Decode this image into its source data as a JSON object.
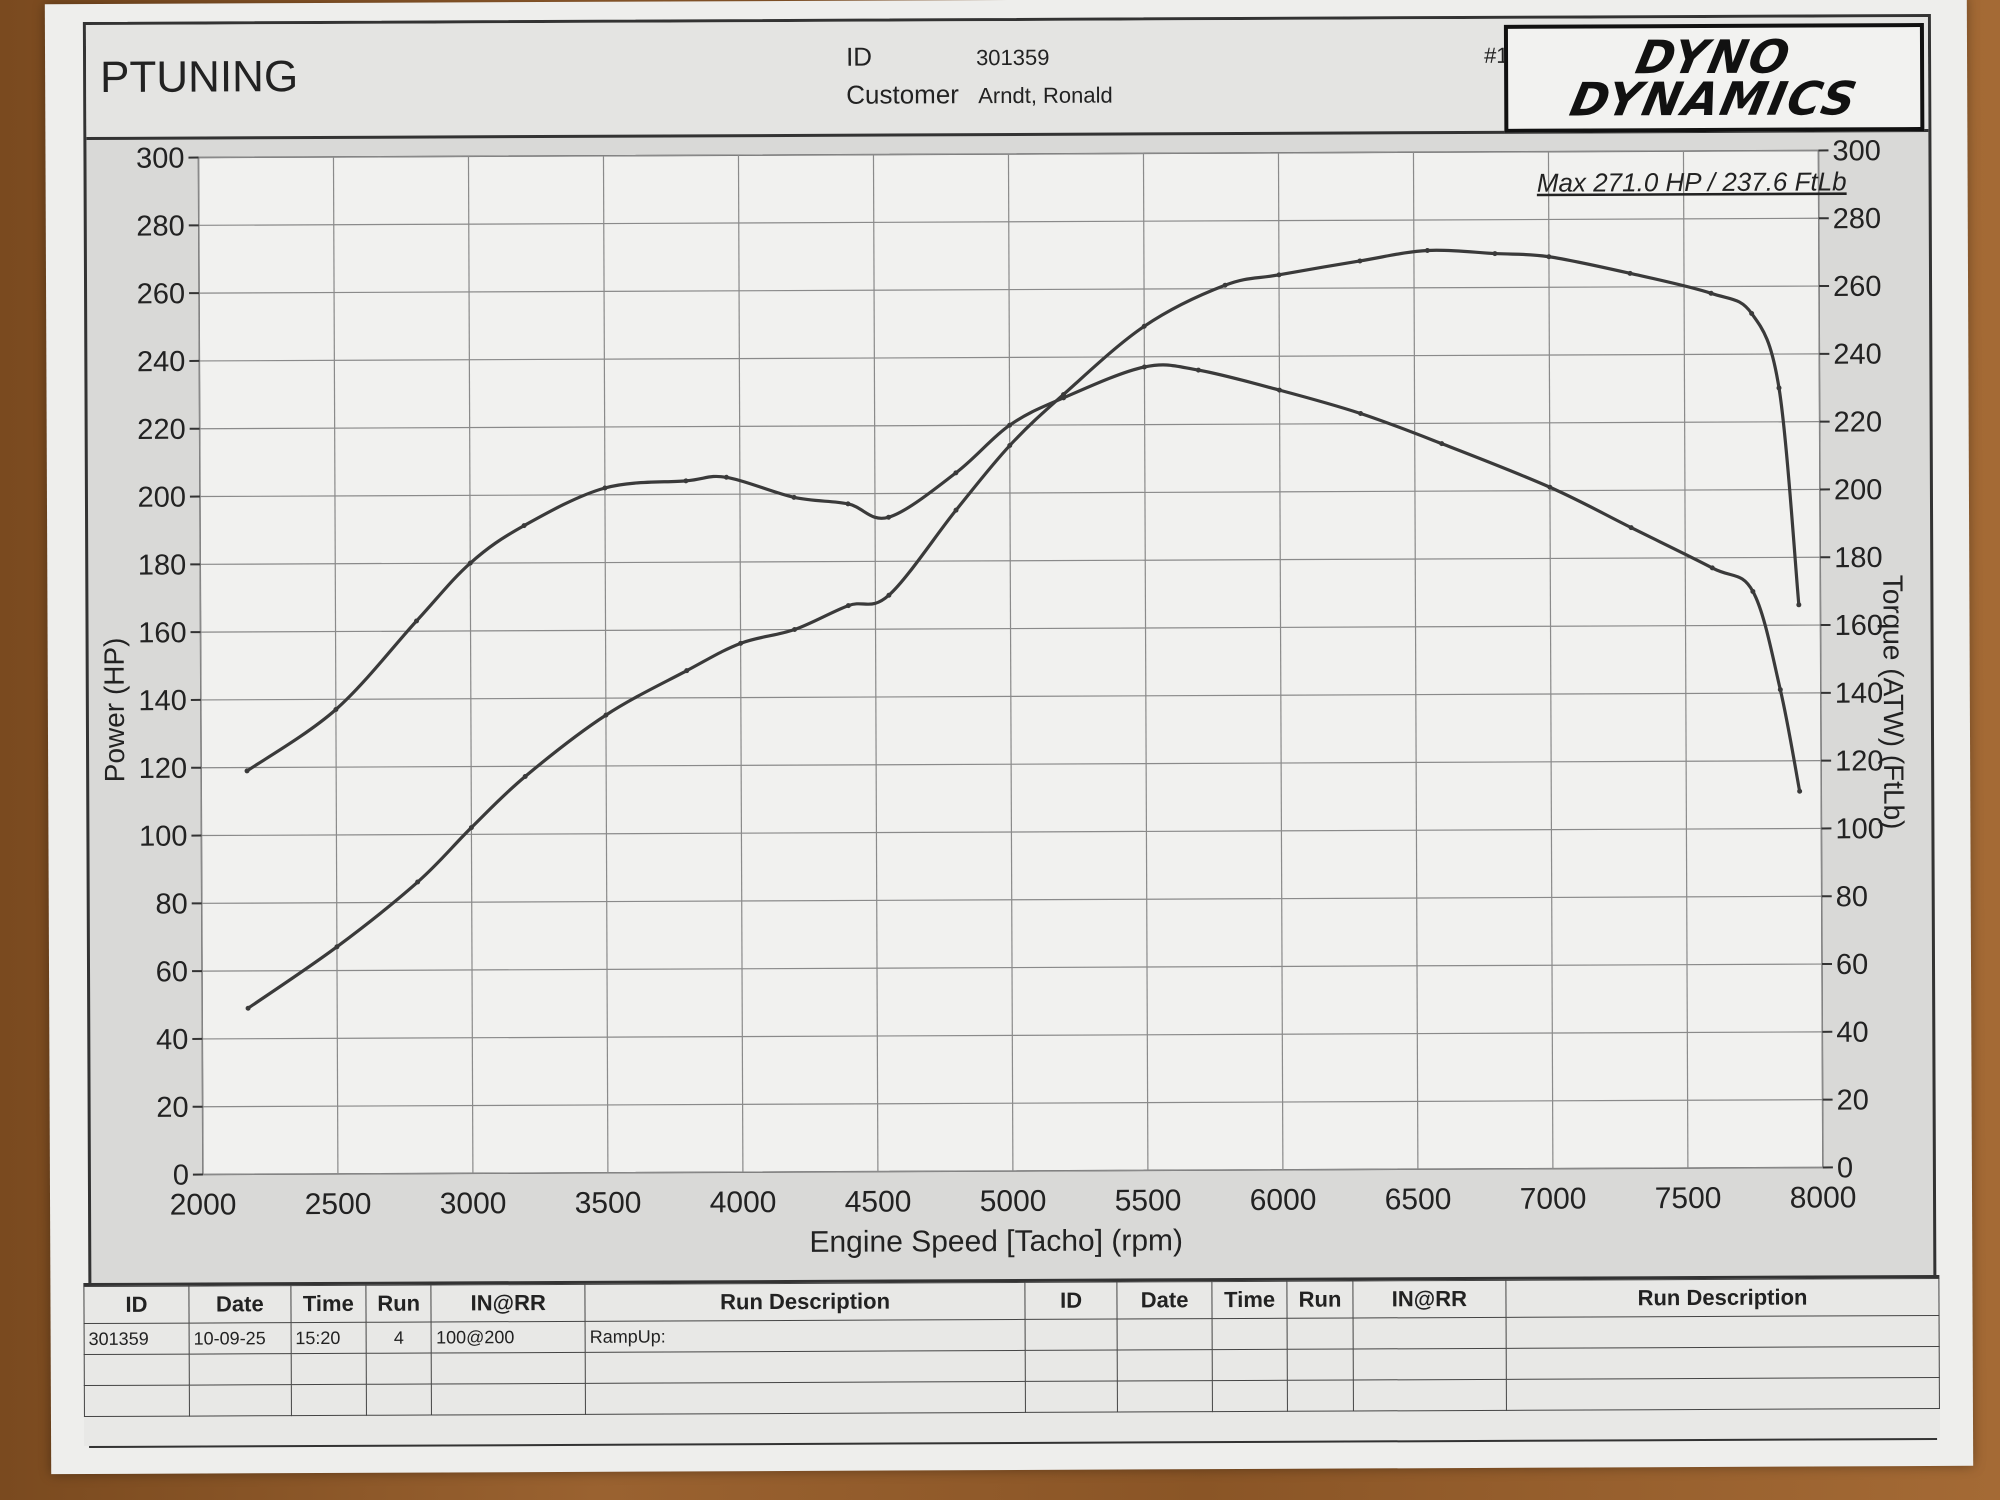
{
  "header": {
    "company": "PTUNING",
    "id_label": "ID",
    "id_value": "301359",
    "customer_label": "Customer",
    "customer_value": "Arndt, Ronald",
    "run_number": "#1",
    "logo_line1": "DYNO",
    "logo_line2": "DYNAMICS"
  },
  "chart_data": {
    "type": "line",
    "annotation": "Max 271.0 HP  / 237.6 FtLb",
    "xlabel": "Engine Speed [Tacho] (rpm)",
    "ylabel_left": "Power (HP)",
    "ylabel_right": "Torque (ATW) (FtLb)",
    "xlim": [
      2000,
      8000
    ],
    "ylim_left": [
      0,
      300
    ],
    "ylim_right": [
      0,
      300
    ],
    "x_ticks": [
      "2000",
      "2500",
      "3000",
      "3500",
      "4000",
      "4500",
      "5000",
      "5500",
      "6000",
      "6500",
      "7000",
      "7500",
      "8000"
    ],
    "y_ticks": [
      "0",
      "20",
      "40",
      "60",
      "80",
      "100",
      "120",
      "140",
      "160",
      "180",
      "200",
      "220",
      "240",
      "260",
      "280",
      "300"
    ],
    "grid": true,
    "series": [
      {
        "axis": "left",
        "x": [
          2170,
          2500,
          2800,
          3000,
          3200,
          3500,
          3800,
          4000,
          4200,
          4400,
          4550,
          4800,
          5000,
          5200,
          5500,
          5800,
          6000,
          6300,
          6550,
          6800,
          7000,
          7300,
          7600,
          7750,
          7850,
          7920
        ],
        "y": [
          49,
          67,
          86,
          102,
          117,
          135,
          148,
          156,
          160,
          167,
          170,
          195,
          214,
          229,
          249,
          261,
          264,
          268,
          271,
          270,
          269,
          264,
          258,
          252,
          230,
          166
        ]
      },
      {
        "axis": "right",
        "x": [
          2170,
          2500,
          2800,
          3000,
          3200,
          3500,
          3800,
          3950,
          4200,
          4400,
          4550,
          4800,
          5000,
          5200,
          5500,
          5700,
          6000,
          6300,
          6600,
          7000,
          7300,
          7600,
          7750,
          7850,
          7920
        ],
        "y": [
          119,
          137,
          163,
          180,
          191,
          202,
          204,
          205,
          199,
          197,
          193,
          206,
          220,
          228,
          237,
          236,
          230,
          223,
          214,
          201,
          189,
          177,
          170,
          141,
          111
        ]
      }
    ]
  },
  "run_table": {
    "headers": [
      "ID",
      "Date",
      "Time",
      "Run",
      "IN@RR",
      "Run Description",
      "ID",
      "Date",
      "Time",
      "Run",
      "IN@RR",
      "Run Description"
    ],
    "rows": [
      [
        "301359",
        "10-09-25",
        "15:20",
        "4",
        "100@200",
        "RampUp:",
        "",
        "",
        "",
        "",
        "",
        ""
      ],
      [
        "",
        "",
        "",
        "",
        "",
        "",
        "",
        "",
        "",
        "",
        "",
        ""
      ],
      [
        "",
        "",
        "",
        "",
        "",
        "",
        "",
        "",
        "",
        "",
        "",
        ""
      ]
    ]
  }
}
